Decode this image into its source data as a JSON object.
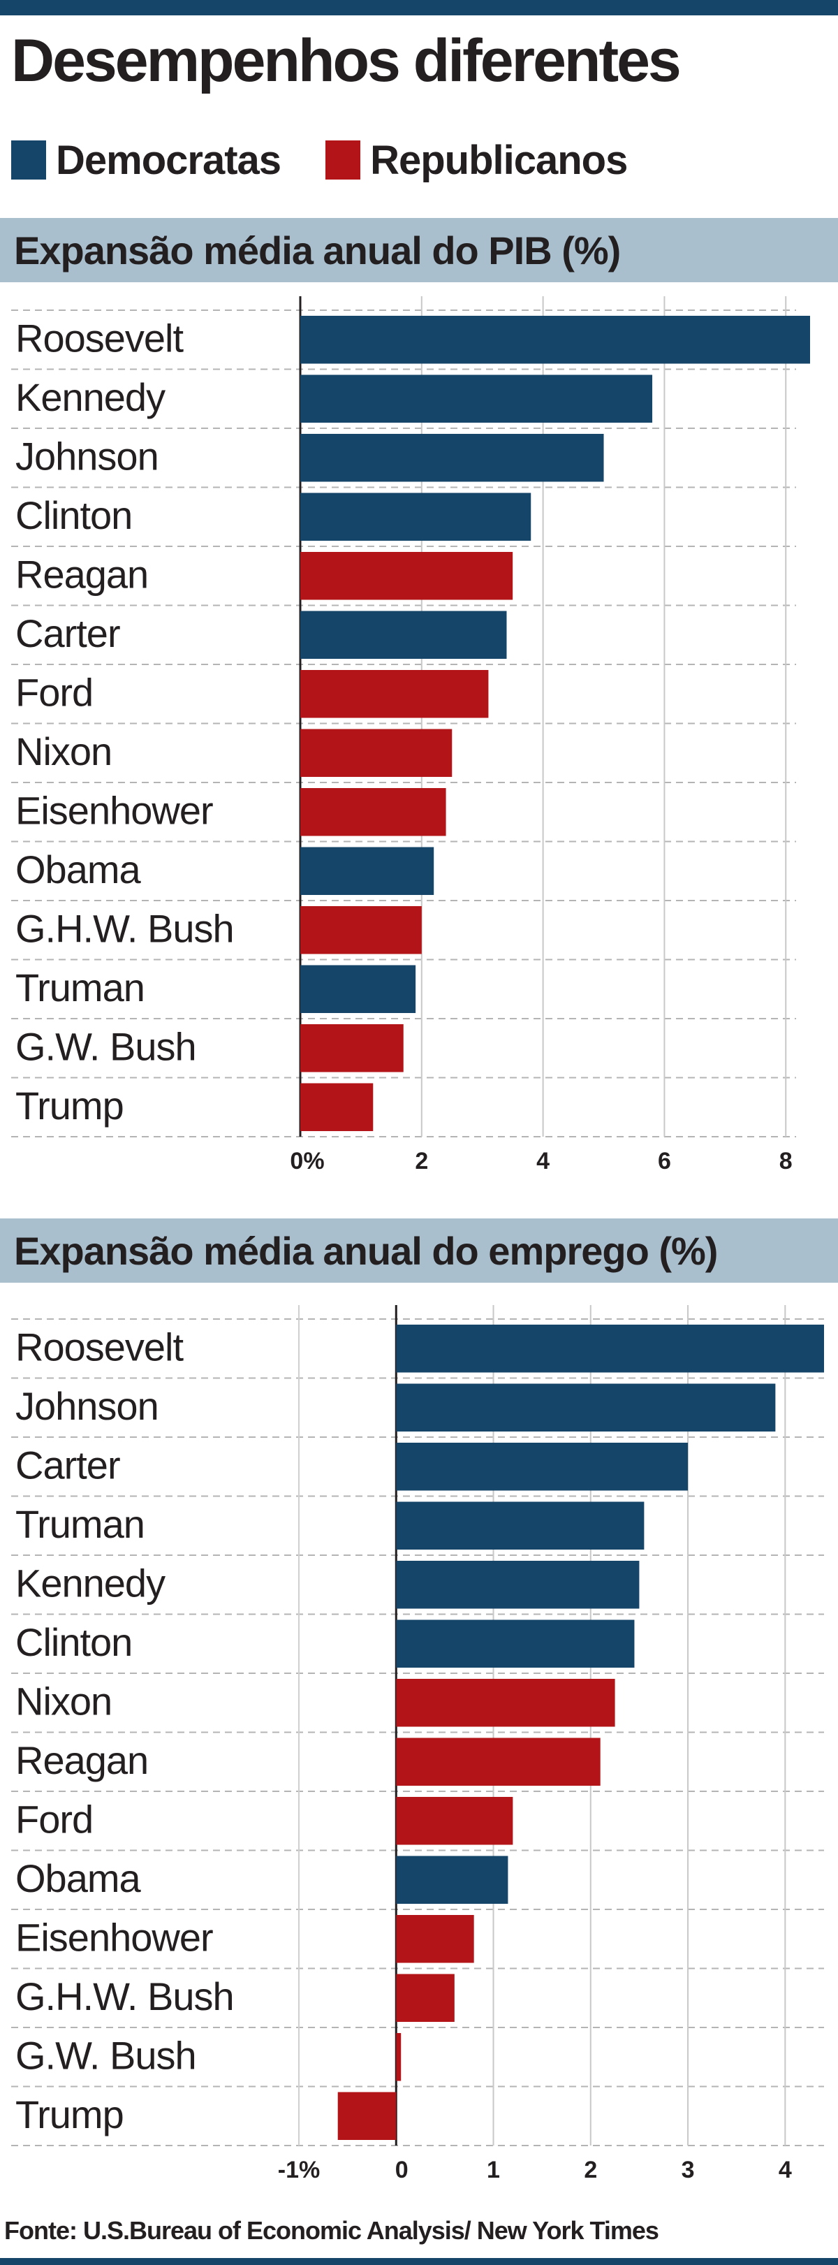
{
  "title": "Desempenhos diferentes",
  "legend": [
    {
      "label": "Democratas",
      "color": "#16456a"
    },
    {
      "label": "Republicanos",
      "color": "#b21417"
    }
  ],
  "source": "Fonte: U.S.Bureau of Economic Analysis/ New York Times",
  "chart_data": [
    {
      "type": "bar",
      "orientation": "horizontal",
      "title": "Expansão média anual do PIB (%)",
      "categories": [
        "Roosevelt",
        "Kennedy",
        "Johnson",
        "Clinton",
        "Reagan",
        "Carter",
        "Ford",
        "Nixon",
        "Eisenhower",
        "Obama",
        "G.H.W. Bush",
        "Truman",
        "G.W. Bush",
        "Trump"
      ],
      "values": [
        8.4,
        5.8,
        5.0,
        3.8,
        3.5,
        3.4,
        3.1,
        2.5,
        2.4,
        2.2,
        2.0,
        1.9,
        1.7,
        1.2
      ],
      "party": [
        "D",
        "D",
        "D",
        "D",
        "R",
        "D",
        "R",
        "R",
        "R",
        "D",
        "R",
        "D",
        "R",
        "R"
      ],
      "xticks": [
        0,
        2,
        4,
        6,
        8
      ],
      "xtick_labels": [
        "0%",
        "2",
        "4",
        "6",
        "8"
      ],
      "xlim": [
        0,
        8.4
      ],
      "grid": true
    },
    {
      "type": "bar",
      "orientation": "horizontal",
      "title": "Expansão média anual do emprego (%)",
      "categories": [
        "Roosevelt",
        "Johnson",
        "Carter",
        "Truman",
        "Kennedy",
        "Clinton",
        "Nixon",
        "Reagan",
        "Ford",
        "Obama",
        "Eisenhower",
        "G.H.W. Bush",
        "G.W. Bush",
        "Trump"
      ],
      "values": [
        4.4,
        3.9,
        3.0,
        2.55,
        2.5,
        2.45,
        2.25,
        2.1,
        1.2,
        1.15,
        0.8,
        0.6,
        0.05,
        -0.6
      ],
      "party": [
        "D",
        "D",
        "D",
        "D",
        "D",
        "D",
        "R",
        "R",
        "R",
        "D",
        "R",
        "R",
        "R",
        "R"
      ],
      "xticks": [
        -1,
        0,
        1,
        2,
        3,
        4
      ],
      "xtick_labels": [
        "-1%",
        "0",
        "1",
        "2",
        "3",
        "4"
      ],
      "xlim": [
        -1,
        4.4
      ],
      "grid": true
    }
  ]
}
